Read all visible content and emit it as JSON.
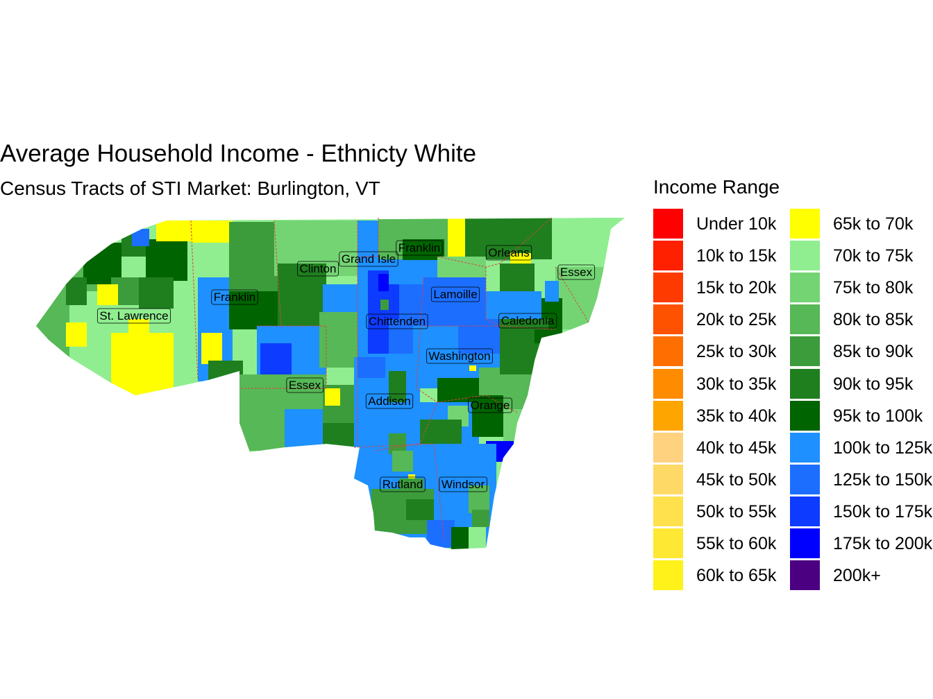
{
  "title": "Average Household Income - Ethnicty White",
  "subtitle": "Census Tracts of STI Market: Burlington, VT",
  "legend": {
    "title": "Income Range",
    "items": [
      {
        "label": "Under 10k",
        "color": "#FF0000"
      },
      {
        "label": "10k to 15k",
        "color": "#FF2000"
      },
      {
        "label": "15k to 20k",
        "color": "#FF3A00"
      },
      {
        "label": "20k to 25k",
        "color": "#FF5200"
      },
      {
        "label": "25k to 30k",
        "color": "#FF6E00"
      },
      {
        "label": "30k to 35k",
        "color": "#FF8C00"
      },
      {
        "label": "35k to 40k",
        "color": "#FFA500"
      },
      {
        "label": "40k to 45k",
        "color": "#FFD27F"
      },
      {
        "label": "45k to 50k",
        "color": "#FFD966"
      },
      {
        "label": "50k to 55k",
        "color": "#FFE14D"
      },
      {
        "label": "55k to 60k",
        "color": "#FFE833"
      },
      {
        "label": "60k to 65k",
        "color": "#FFF21A"
      },
      {
        "label": "65k to 70k",
        "color": "#FFFF00"
      },
      {
        "label": "70k to 75k",
        "color": "#90EE90"
      },
      {
        "label": "75k to 80k",
        "color": "#74D474"
      },
      {
        "label": "80k to 85k",
        "color": "#56B856"
      },
      {
        "label": "85k to 90k",
        "color": "#3C9C3C"
      },
      {
        "label": "90k to 95k",
        "color": "#1F7F1F"
      },
      {
        "label": "95k to 100k",
        "color": "#006400"
      },
      {
        "label": "100k to 125k",
        "color": "#1E90FF"
      },
      {
        "label": "125k to 150k",
        "color": "#1C6EFF"
      },
      {
        "label": "150k to 175k",
        "color": "#0D3BFF"
      },
      {
        "label": "175k to 200k",
        "color": "#0000FF"
      },
      {
        "label": "200k+",
        "color": "#4B0082"
      }
    ]
  },
  "counties": [
    {
      "name": "St. Lawrence"
    },
    {
      "name": "Franklin"
    },
    {
      "name": "Clinton"
    },
    {
      "name": "Grand Isle"
    },
    {
      "name": "Franklin"
    },
    {
      "name": "Orleans"
    },
    {
      "name": "Essex"
    },
    {
      "name": "Lamoille"
    },
    {
      "name": "Chittenden"
    },
    {
      "name": "Caledonia"
    },
    {
      "name": "Washington"
    },
    {
      "name": "Essex"
    },
    {
      "name": "Addison"
    },
    {
      "name": "Orange"
    },
    {
      "name": "Rutland"
    },
    {
      "name": "Windsor"
    }
  ]
}
